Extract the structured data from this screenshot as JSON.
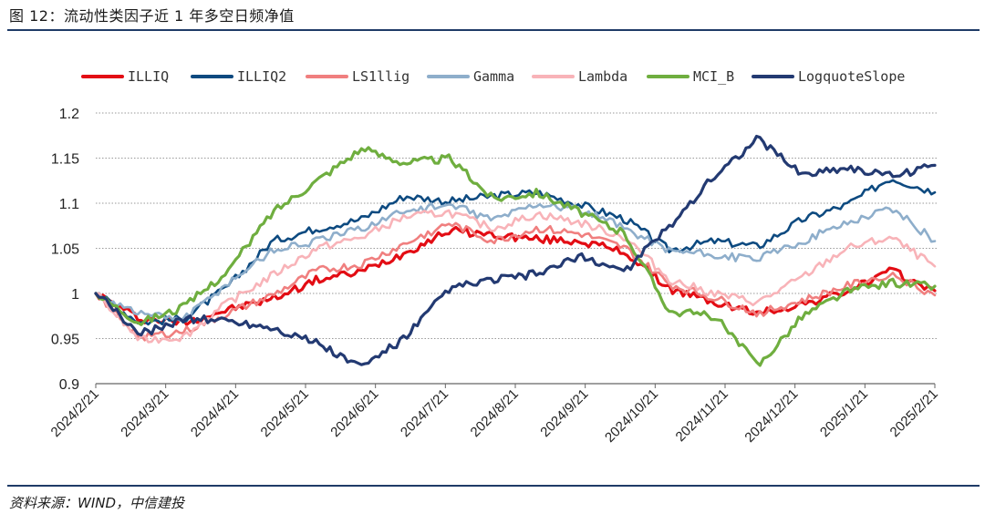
{
  "header": {
    "title": "图 12：流动性类因子近 1 年多空日频净值"
  },
  "footer": {
    "source": "资料来源：WIND，中信建投"
  },
  "chart_data": {
    "type": "line",
    "title": "",
    "xlabel": "",
    "ylabel": "",
    "ylim": [
      0.9,
      1.2
    ],
    "yticks": [
      0.9,
      0.95,
      1,
      1.05,
      1.1,
      1.15,
      1.2
    ],
    "ytick_labels": [
      "0.9",
      "0.95",
      "1",
      "1.05",
      "1.1",
      "1.15",
      "1.2"
    ],
    "x_ticks": [
      "2024/2/21",
      "2024/3/21",
      "2024/4/21",
      "2024/5/21",
      "2024/6/21",
      "2024/7/21",
      "2024/8/21",
      "2024/9/21",
      "2024/10/21",
      "2024/11/21",
      "2024/12/21",
      "2025/1/21",
      "2025/2/21"
    ],
    "grid": "horizontal dotted",
    "legend_position": "top",
    "series": [
      {
        "name": "ILLIQ",
        "color": "#e30d14",
        "width": 3.2,
        "values": [
          1.0,
          0.972,
          0.968,
          0.982,
          0.994,
          1.015,
          1.024,
          1.045,
          1.07,
          1.065,
          1.06,
          1.058,
          1.045,
          1.005,
          0.99,
          0.978,
          0.988,
          1.002,
          1.025,
          1.003
        ]
      },
      {
        "name": "ILLIQ2",
        "color": "#0d4a80",
        "width": 2.6,
        "values": [
          1.0,
          0.968,
          0.972,
          1.008,
          1.058,
          1.072,
          1.082,
          1.108,
          1.102,
          1.108,
          1.112,
          1.098,
          1.082,
          1.048,
          1.058,
          1.052,
          1.082,
          1.098,
          1.128,
          1.112
        ]
      },
      {
        "name": "LS1llig",
        "color": "#f07f7f",
        "width": 2.6,
        "values": [
          1.0,
          0.952,
          0.958,
          0.978,
          0.998,
          1.025,
          1.032,
          1.055,
          1.078,
          1.058,
          1.072,
          1.066,
          1.05,
          1.01,
          0.995,
          0.978,
          0.992,
          1.008,
          1.022,
          0.998
        ]
      },
      {
        "name": "Gamma",
        "color": "#8eaecb",
        "width": 2.6,
        "values": [
          1.0,
          0.978,
          0.972,
          1.012,
          1.048,
          1.058,
          1.072,
          1.092,
          1.098,
          1.082,
          1.1,
          1.092,
          1.072,
          1.048,
          1.042,
          1.038,
          1.058,
          1.078,
          1.095,
          1.058
        ]
      },
      {
        "name": "Lambda",
        "color": "#f8b3b8",
        "width": 2.6,
        "values": [
          1.0,
          0.948,
          0.952,
          0.99,
          1.02,
          1.05,
          1.062,
          1.085,
          1.09,
          1.072,
          1.088,
          1.078,
          1.062,
          1.015,
          1.0,
          0.99,
          1.018,
          1.05,
          1.062,
          1.03
        ]
      },
      {
        "name": "MCI_B",
        "color": "#6fae3f",
        "width": 3.2,
        "values": [
          1.0,
          0.968,
          0.985,
          1.025,
          1.09,
          1.125,
          1.16,
          1.145,
          1.15,
          1.105,
          1.112,
          1.09,
          1.065,
          0.98,
          0.975,
          0.92,
          0.975,
          1.002,
          1.012,
          1.008
        ]
      },
      {
        "name": "LogquoteSlope",
        "color": "#233a72",
        "width": 3.2,
        "values": [
          1.0,
          0.955,
          0.972,
          0.97,
          0.962,
          0.945,
          0.918,
          0.95,
          1.005,
          1.015,
          1.022,
          1.04,
          1.025,
          1.075,
          1.13,
          1.172,
          1.132,
          1.14,
          1.13,
          1.142
        ]
      }
    ]
  }
}
